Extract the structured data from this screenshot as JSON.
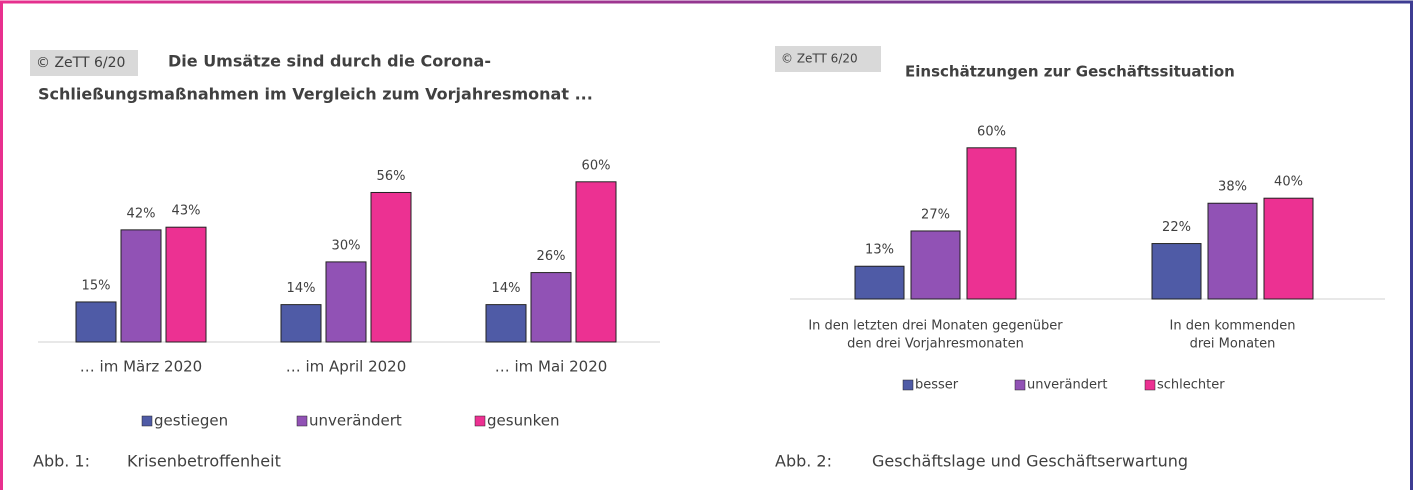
{
  "chart_data": [
    {
      "type": "bar",
      "badge": "© ZeTT 6/20",
      "title": [
        "Die Umsätze sind durch die Corona-",
        "Schließungsmaßnahmen im Vergleich zum Vorjahresmonat ..."
      ],
      "categories": [
        "… im März 2020",
        "… im April 2020",
        "… im Mai 2020"
      ],
      "series": [
        {
          "name": "gestiegen",
          "color": "#4f5ba6",
          "values": [
            15,
            14,
            14
          ],
          "value_labels": [
            "15%",
            "14%",
            "14%"
          ]
        },
        {
          "name": "unverändert",
          "color": "#9152b5",
          "values": [
            42,
            30,
            26
          ],
          "value_labels": [
            "42%",
            "30%",
            "26%"
          ]
        },
        {
          "name": "gesunken",
          "color": "#ec3192",
          "values": [
            43,
            56,
            60
          ],
          "value_labels": [
            "43%",
            "56%",
            "60%"
          ]
        }
      ],
      "caption": {
        "label": "Abb. 1:",
        "text": "Krisenbetroffenheit"
      }
    },
    {
      "type": "bar",
      "badge": "© ZeTT 6/20",
      "title": [
        "Einschätzungen zur Geschäftssituation"
      ],
      "categories": [
        [
          "In den letzten drei Monaten gegenüber",
          "den drei Vorjahresmonaten"
        ],
        [
          "In den kommenden",
          "drei Monaten"
        ]
      ],
      "series": [
        {
          "name": "besser",
          "color": "#4f5ba6",
          "values": [
            13,
            22
          ],
          "value_labels": [
            "13%",
            "22%"
          ]
        },
        {
          "name": "unverändert",
          "color": "#9152b5",
          "values": [
            27,
            38
          ],
          "value_labels": [
            "27%",
            "38%"
          ]
        },
        {
          "name": "schlechter",
          "color": "#ec3192",
          "values": [
            60,
            40
          ],
          "value_labels": [
            "60%",
            "40%"
          ]
        }
      ],
      "caption": {
        "label": "Abb. 2:",
        "text": "Geschäftslage und Geschäftserwartung"
      }
    }
  ]
}
